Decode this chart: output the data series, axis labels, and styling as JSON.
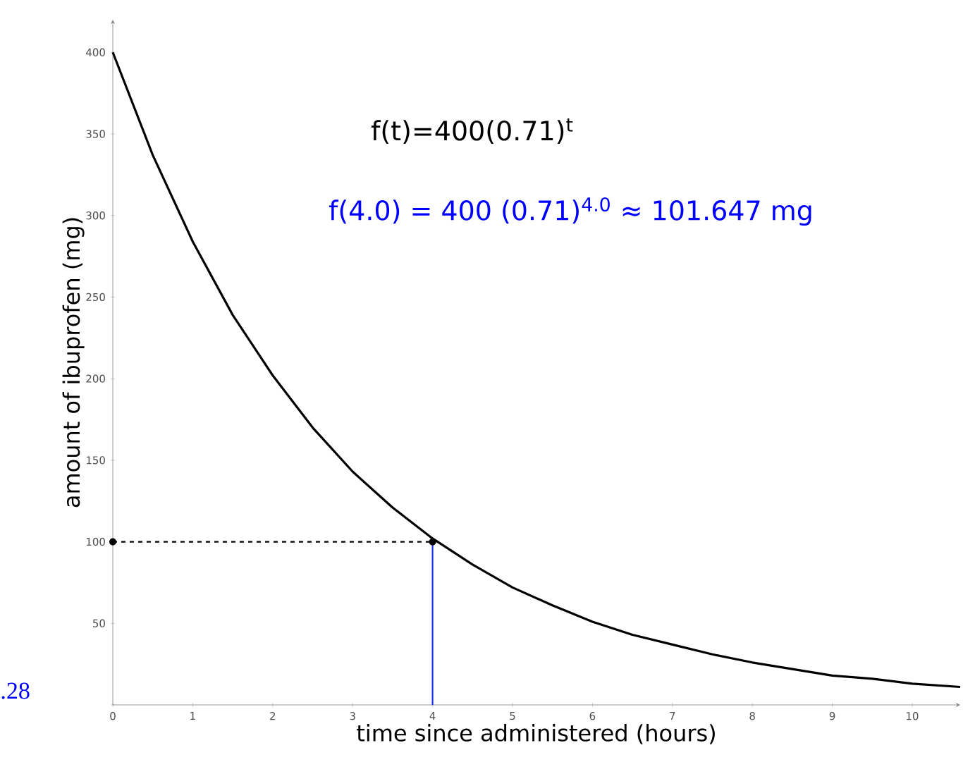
{
  "chart_data": {
    "type": "line",
    "xlabel": "time since administered (hours)",
    "ylabel": "amount of ibuprofen (mg)",
    "xlim": [
      0,
      10.6
    ],
    "ylim": [
      0,
      420
    ],
    "xticks": [
      0,
      1,
      2,
      3,
      4,
      5,
      6,
      7,
      8,
      9,
      10
    ],
    "yticks": [
      {
        "value": 0,
        "label": null
      },
      50,
      100,
      150,
      200,
      250,
      300,
      350,
      400
    ],
    "series": [
      {
        "color": "#000000",
        "line_style": "solid",
        "marker": "none",
        "x": [
          0,
          0.5,
          1,
          1.5,
          2,
          2.5,
          3,
          3.5,
          4,
          4.5,
          5,
          5.5,
          6,
          6.5,
          7,
          7.5,
          8,
          8.5,
          9,
          9.5,
          10,
          10.6
        ],
        "values": [
          400,
          337,
          284,
          239,
          202,
          170,
          143,
          121,
          102,
          86,
          72,
          61,
          51,
          43,
          37,
          31,
          26,
          22,
          18,
          16,
          13,
          11
        ]
      },
      {
        "color": "#000000",
        "line_style": "dashed",
        "marker": "circle",
        "x": [
          0,
          4
        ],
        "values": [
          100,
          100
        ]
      },
      {
        "color": "#1a33ff",
        "line_style": "solid",
        "marker": "none",
        "x": [
          4,
          4
        ],
        "values": [
          0,
          100
        ]
      }
    ],
    "annotations": [
      "f(t)=400(0.71)$^{t}$",
      "f(4.0) = 400 (0.71)$^{4.0}$ ≈ 101.647 mg",
      ".28"
    ]
  }
}
